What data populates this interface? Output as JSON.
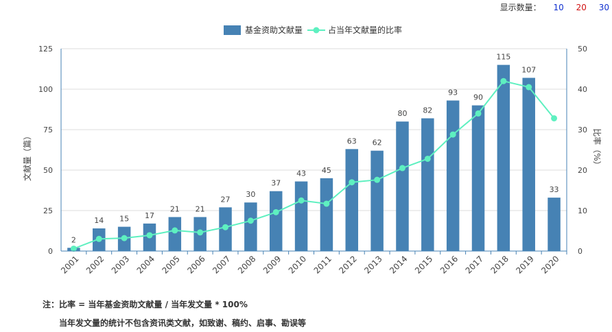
{
  "controls": {
    "label": "显示数量：",
    "options": [
      "10",
      "20",
      "30"
    ]
  },
  "notes": {
    "line1": "注：比率 = 当年基金资助文献量 / 当年发文量 * 100%",
    "line2": "当年发文量的统计不包含资讯类文献，如致谢、稿约、启事、勘误等"
  },
  "colors": {
    "bar": "#4682b4",
    "line": "#5ef0c0",
    "axis": "#4682b4",
    "grid": "#dddddd"
  },
  "chart_data": {
    "type": "bar",
    "categories": [
      "2001",
      "2002",
      "2003",
      "2004",
      "2005",
      "2006",
      "2007",
      "2008",
      "2009",
      "2010",
      "2011",
      "2012",
      "2013",
      "2014",
      "2015",
      "2016",
      "2017",
      "2018",
      "2019",
      "2020"
    ],
    "series": [
      {
        "name": "基金资助文献量",
        "type": "bar",
        "axis": "left",
        "values": [
          2,
          14,
          15,
          17,
          21,
          21,
          27,
          30,
          37,
          43,
          45,
          63,
          62,
          80,
          82,
          93,
          90,
          115,
          107,
          33
        ]
      },
      {
        "name": "占当年文献量的比率",
        "type": "line",
        "axis": "right",
        "values": [
          0.6,
          3.0,
          3.2,
          3.9,
          5.1,
          4.6,
          5.9,
          7.5,
          9.6,
          12.5,
          11.7,
          17.0,
          17.6,
          20.5,
          22.8,
          28.8,
          34.0,
          42.0,
          40.5,
          32.8
        ]
      }
    ],
    "ylabel": "文献量（篇）",
    "y2label": "比率（%）",
    "ylim": [
      0,
      125
    ],
    "yticks": [
      "0",
      "25",
      "50",
      "75",
      "100",
      "125"
    ],
    "y2lim": [
      0,
      50
    ],
    "y2ticks": [
      "0",
      "10",
      "20",
      "30",
      "40",
      "50"
    ],
    "grid": true,
    "legend": "top-center"
  }
}
